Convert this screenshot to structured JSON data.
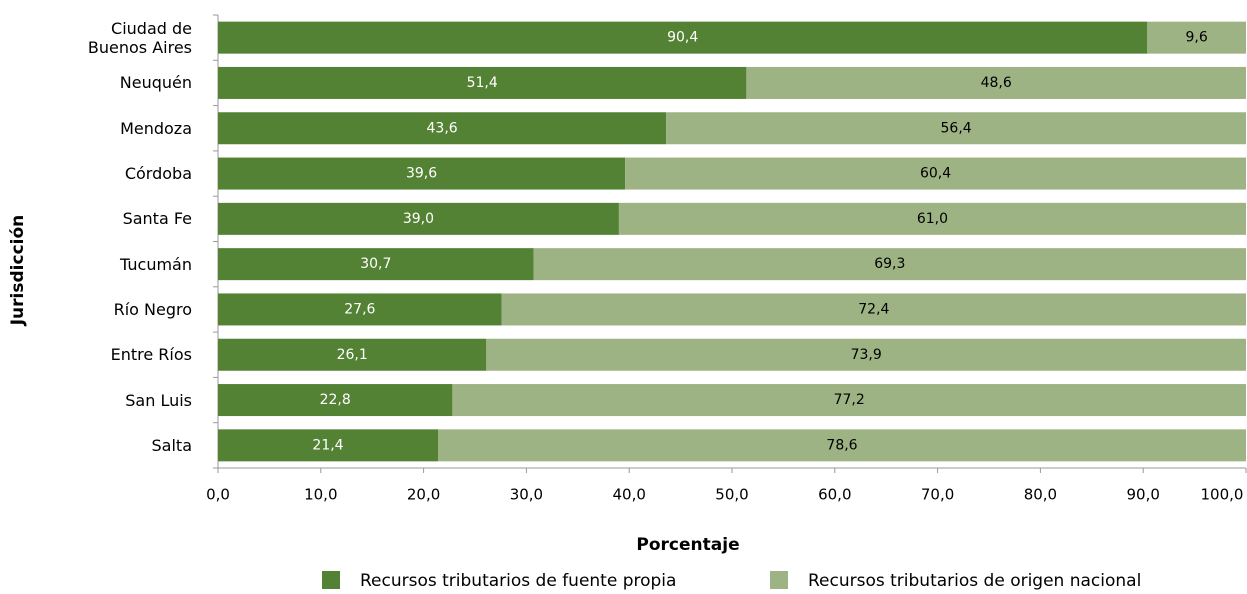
{
  "chart_data": {
    "type": "stacked_barh",
    "categories": [
      "Ciudad de Buenos Aires",
      "Neuquén",
      "Mendoza",
      "Córdoba",
      "Santa Fe",
      "Tucumán",
      "Río Negro",
      "Entre Ríos",
      "San Luis",
      "Salta"
    ],
    "series": [
      {
        "name": "Recursos tributarios de fuente propia",
        "color": "#548235",
        "values": [
          90.4,
          51.4,
          43.6,
          39.6,
          39.0,
          30.7,
          27.6,
          26.1,
          22.8,
          21.4
        ],
        "value_labels": [
          "90,4",
          "51,4",
          "43,6",
          "39,6",
          "39,0",
          "30,7",
          "27,6",
          "26,1",
          "22,8",
          "21,4"
        ]
      },
      {
        "name": "Recursos tributarios de origen nacional",
        "color": "#9db384",
        "values": [
          9.6,
          48.6,
          56.4,
          60.4,
          61.0,
          69.3,
          72.4,
          73.9,
          77.2,
          78.6
        ],
        "value_labels": [
          "9,6",
          "48,6",
          "56,4",
          "60,4",
          "61,0",
          "69,3",
          "72,4",
          "73,9",
          "77,2",
          "78,6"
        ]
      }
    ],
    "xlabel": "Porcentaje",
    "ylabel": "Jurisdicción",
    "xlim": [
      0,
      100
    ],
    "xticks": [
      {
        "value": 0,
        "label": "0,0"
      },
      {
        "value": 10,
        "label": "10,0"
      },
      {
        "value": 20,
        "label": "20,0"
      },
      {
        "value": 30,
        "label": "30,0"
      },
      {
        "value": 40,
        "label": "40,0"
      },
      {
        "value": 50,
        "label": "50,0"
      },
      {
        "value": 60,
        "label": "60,0"
      },
      {
        "value": 70,
        "label": "70,0"
      },
      {
        "value": 80,
        "label": "80,0"
      },
      {
        "value": 90,
        "label": "90,0"
      },
      {
        "value": 100,
        "label": "100,0"
      }
    ],
    "legend": "bottom"
  }
}
